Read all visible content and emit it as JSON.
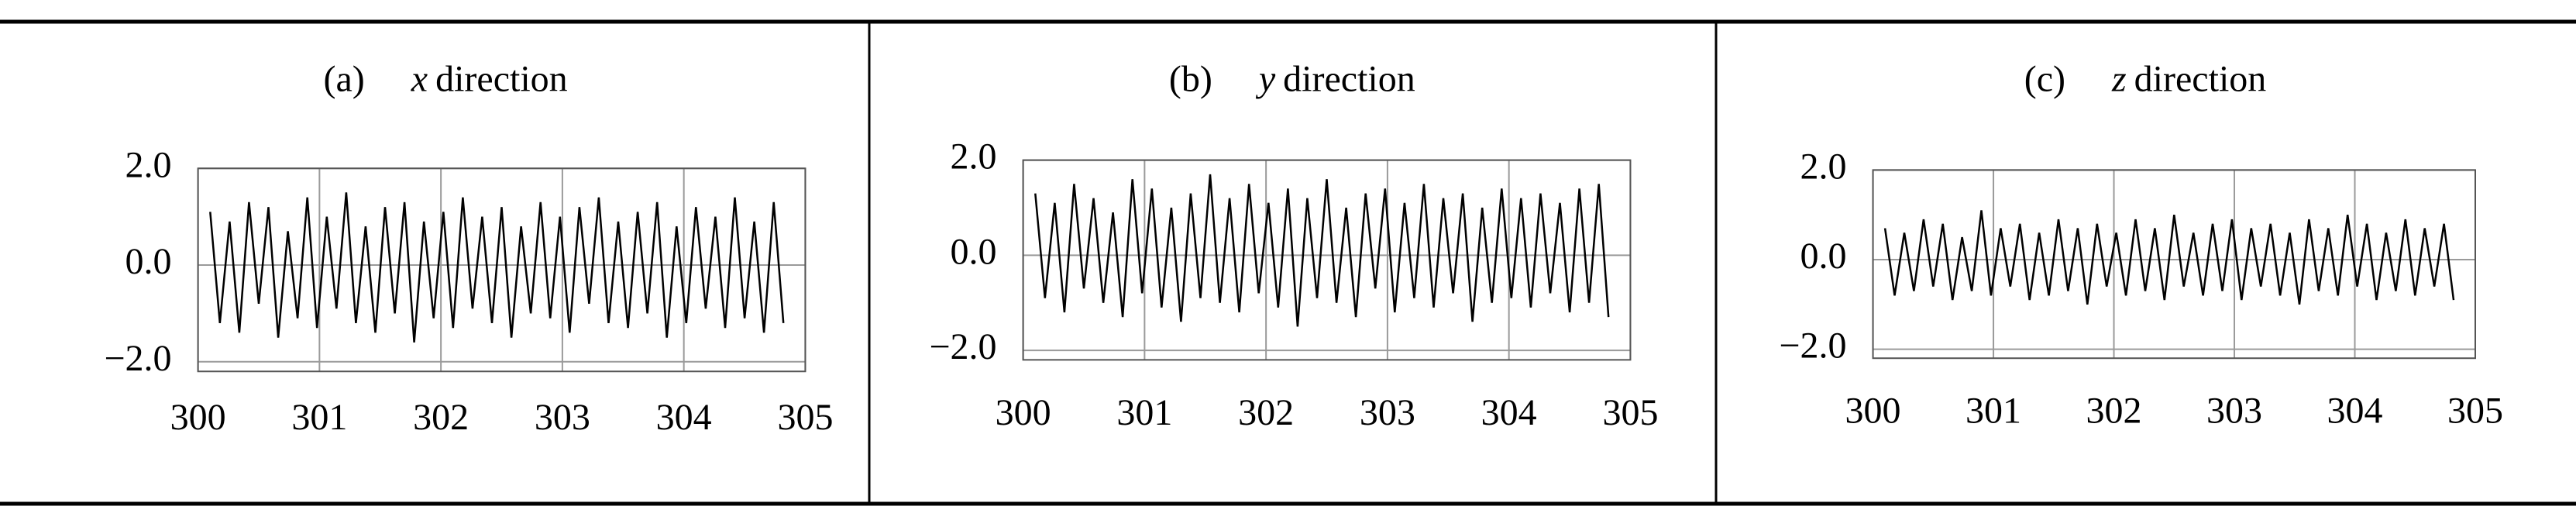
{
  "chart_data": [
    {
      "type": "line",
      "panel": "(a)",
      "axis_name": "x",
      "title": "direction",
      "color": "#000000",
      "grid": true,
      "xlim": [
        300,
        305
      ],
      "xticks": [
        300,
        301,
        302,
        303,
        304,
        305
      ],
      "ylim": [
        -2.2,
        2.0
      ],
      "yticks": [
        {
          "value": 2.0,
          "label": "2.0"
        },
        {
          "value": 0.0,
          "label": "0.0"
        },
        {
          "value": -2.0,
          "label": "−2.0"
        }
      ],
      "x": [
        300.1,
        300.18,
        300.26,
        300.34,
        300.42,
        300.5,
        300.58,
        300.66,
        300.74,
        300.82,
        300.9,
        300.98,
        301.06,
        301.14,
        301.22,
        301.3,
        301.38,
        301.46,
        301.54,
        301.62,
        301.7,
        301.78,
        301.86,
        301.94,
        302.02,
        302.1,
        302.18,
        302.26,
        302.34,
        302.42,
        302.5,
        302.58,
        302.66,
        302.74,
        302.82,
        302.9,
        302.98,
        303.06,
        303.14,
        303.22,
        303.3,
        303.38,
        303.46,
        303.54,
        303.62,
        303.7,
        303.78,
        303.86,
        303.94,
        304.02,
        304.1,
        304.18,
        304.26,
        304.34,
        304.42,
        304.5,
        304.58,
        304.66,
        304.74,
        304.82
      ],
      "values": [
        1.1,
        -1.2,
        0.9,
        -1.4,
        1.3,
        -0.8,
        1.2,
        -1.5,
        0.7,
        -1.1,
        1.4,
        -1.3,
        1.0,
        -0.9,
        1.5,
        -1.2,
        0.8,
        -1.4,
        1.2,
        -1.0,
        1.3,
        -1.6,
        0.9,
        -1.1,
        1.1,
        -1.3,
        1.4,
        -0.9,
        1.0,
        -1.2,
        1.2,
        -1.5,
        0.8,
        -1.0,
        1.3,
        -1.1,
        1.0,
        -1.4,
        1.2,
        -0.8,
        1.4,
        -1.2,
        0.9,
        -1.3,
        1.1,
        -1.0,
        1.3,
        -1.5,
        0.8,
        -1.2,
        1.2,
        -0.9,
        1.0,
        -1.3,
        1.4,
        -1.1,
        0.9,
        -1.4,
        1.3,
        -1.2
      ]
    },
    {
      "type": "line",
      "panel": "(b)",
      "axis_name": "y",
      "title": "direction",
      "color": "#000000",
      "grid": true,
      "xlim": [
        300,
        305
      ],
      "xticks": [
        300,
        301,
        302,
        303,
        304,
        305
      ],
      "ylim": [
        -2.2,
        2.0
      ],
      "yticks": [
        {
          "value": 2.0,
          "label": "2.0"
        },
        {
          "value": 0.0,
          "label": "0.0"
        },
        {
          "value": -2.0,
          "label": "−2.0"
        }
      ],
      "x": [
        300.1,
        300.18,
        300.26,
        300.34,
        300.42,
        300.5,
        300.58,
        300.66,
        300.74,
        300.82,
        300.9,
        300.98,
        301.06,
        301.14,
        301.22,
        301.3,
        301.38,
        301.46,
        301.54,
        301.62,
        301.7,
        301.78,
        301.86,
        301.94,
        302.02,
        302.1,
        302.18,
        302.26,
        302.34,
        302.42,
        302.5,
        302.58,
        302.66,
        302.74,
        302.82,
        302.9,
        302.98,
        303.06,
        303.14,
        303.22,
        303.3,
        303.38,
        303.46,
        303.54,
        303.62,
        303.7,
        303.78,
        303.86,
        303.94,
        304.02,
        304.1,
        304.18,
        304.26,
        304.34,
        304.42,
        304.5,
        304.58,
        304.66,
        304.74,
        304.82
      ],
      "values": [
        1.3,
        -0.9,
        1.1,
        -1.2,
        1.5,
        -0.7,
        1.2,
        -1.0,
        0.9,
        -1.3,
        1.6,
        -0.8,
        1.4,
        -1.1,
        1.0,
        -1.4,
        1.3,
        -0.9,
        1.7,
        -1.0,
        1.2,
        -1.2,
        1.5,
        -0.8,
        1.1,
        -1.1,
        1.4,
        -1.5,
        1.2,
        -0.9,
        1.6,
        -1.0,
        1.0,
        -1.3,
        1.3,
        -0.7,
        1.4,
        -1.2,
        1.1,
        -0.9,
        1.5,
        -1.1,
        1.2,
        -0.8,
        1.3,
        -1.4,
        1.0,
        -1.0,
        1.4,
        -0.9,
        1.2,
        -1.1,
        1.3,
        -0.8,
        1.1,
        -1.2,
        1.4,
        -1.0,
        1.5,
        -1.3
      ]
    },
    {
      "type": "line",
      "panel": "(c)",
      "axis_name": "z",
      "title": "direction",
      "color": "#000000",
      "grid": true,
      "xlim": [
        300,
        305
      ],
      "xticks": [
        300,
        301,
        302,
        303,
        304,
        305
      ],
      "ylim": [
        -2.2,
        2.0
      ],
      "yticks": [
        {
          "value": 2.0,
          "label": "2.0"
        },
        {
          "value": 0.0,
          "label": "0.0"
        },
        {
          "value": -2.0,
          "label": "−2.0"
        }
      ],
      "x": [
        300.1,
        300.18,
        300.26,
        300.34,
        300.42,
        300.5,
        300.58,
        300.66,
        300.74,
        300.82,
        300.9,
        300.98,
        301.06,
        301.14,
        301.22,
        301.3,
        301.38,
        301.46,
        301.54,
        301.62,
        301.7,
        301.78,
        301.86,
        301.94,
        302.02,
        302.1,
        302.18,
        302.26,
        302.34,
        302.42,
        302.5,
        302.58,
        302.66,
        302.74,
        302.82,
        302.9,
        302.98,
        303.06,
        303.14,
        303.22,
        303.3,
        303.38,
        303.46,
        303.54,
        303.62,
        303.7,
        303.78,
        303.86,
        303.94,
        304.02,
        304.1,
        304.18,
        304.26,
        304.34,
        304.42,
        304.5,
        304.58,
        304.66,
        304.74,
        304.82
      ],
      "values": [
        0.7,
        -0.8,
        0.6,
        -0.7,
        0.9,
        -0.6,
        0.8,
        -0.9,
        0.5,
        -0.7,
        1.1,
        -0.8,
        0.7,
        -0.6,
        0.8,
        -0.9,
        0.6,
        -0.8,
        0.9,
        -0.7,
        0.7,
        -1.0,
        0.8,
        -0.6,
        0.6,
        -0.8,
        0.9,
        -0.7,
        0.7,
        -0.9,
        1.0,
        -0.6,
        0.6,
        -0.8,
        0.8,
        -0.7,
        0.9,
        -0.9,
        0.7,
        -0.6,
        0.8,
        -0.8,
        0.6,
        -1.0,
        0.9,
        -0.7,
        0.7,
        -0.8,
        1.0,
        -0.6,
        0.8,
        -0.9,
        0.6,
        -0.7,
        0.9,
        -0.8,
        0.7,
        -0.6,
        0.8,
        -0.9
      ]
    }
  ]
}
